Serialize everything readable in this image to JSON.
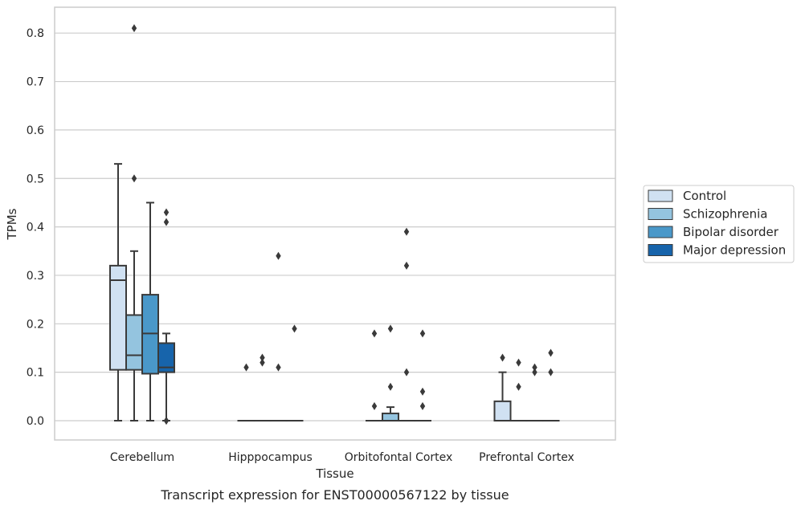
{
  "chart_data": {
    "type": "box",
    "title": "",
    "caption": "Transcript expression for ENST00000567122 by tissue",
    "xlabel": "Tissue",
    "ylabel": "TPMs",
    "ylim": [
      -0.04,
      0.85
    ],
    "yticks": [
      0.0,
      0.1,
      0.2,
      0.3,
      0.4,
      0.5,
      0.6,
      0.7,
      0.8
    ],
    "ytick_labels": [
      "0.0",
      "0.1",
      "0.2",
      "0.3",
      "0.4",
      "0.5",
      "0.6",
      "0.7",
      "0.8"
    ],
    "grid": "horizontal",
    "legend_position": "center-right, outside plot",
    "categories": [
      "Cerebellum",
      "Hipppocampus",
      "Orbitofontal Cortex",
      "Prefrontal Cortex"
    ],
    "series": [
      {
        "name": "Control",
        "color": "#d0e1f2",
        "boxes": [
          {
            "whislo": 0.0,
            "q1": 0.105,
            "med": 0.29,
            "q3": 0.32,
            "whishi": 0.53,
            "fliers": []
          },
          {
            "whislo": 0.0,
            "q1": 0.0,
            "med": 0.0,
            "q3": 0.0,
            "whishi": 0.0,
            "fliers": [
              0.11
            ]
          },
          {
            "whislo": 0.0,
            "q1": 0.0,
            "med": 0.0,
            "q3": 0.0,
            "whishi": 0.0,
            "fliers": [
              0.18,
              0.03
            ]
          },
          {
            "whislo": 0.0,
            "q1": 0.0,
            "med": 0.0,
            "q3": 0.04,
            "whishi": 0.1,
            "fliers": [
              0.13
            ]
          }
        ]
      },
      {
        "name": "Schizophrenia",
        "color": "#94c4df",
        "boxes": [
          {
            "whislo": 0.0,
            "q1": 0.105,
            "med": 0.135,
            "q3": 0.218,
            "whishi": 0.35,
            "fliers": [
              0.81,
              0.5
            ]
          },
          {
            "whislo": 0.0,
            "q1": 0.0,
            "med": 0.0,
            "q3": 0.0,
            "whishi": 0.0,
            "fliers": [
              0.13,
              0.12
            ]
          },
          {
            "whislo": 0.0,
            "q1": 0.0,
            "med": 0.0,
            "q3": 0.015,
            "whishi": 0.028,
            "fliers": [
              0.19,
              0.07
            ]
          },
          {
            "whislo": 0.0,
            "q1": 0.0,
            "med": 0.0,
            "q3": 0.0,
            "whishi": 0.0,
            "fliers": [
              0.12,
              0.07
            ]
          }
        ]
      },
      {
        "name": "Bipolar disorder",
        "color": "#4a98c9",
        "boxes": [
          {
            "whislo": 0.0,
            "q1": 0.097,
            "med": 0.18,
            "q3": 0.26,
            "whishi": 0.45,
            "fliers": []
          },
          {
            "whislo": 0.0,
            "q1": 0.0,
            "med": 0.0,
            "q3": 0.0,
            "whishi": 0.0,
            "fliers": [
              0.34,
              0.11
            ]
          },
          {
            "whislo": 0.0,
            "q1": 0.0,
            "med": 0.0,
            "q3": 0.0,
            "whishi": 0.0,
            "fliers": [
              0.39,
              0.32,
              0.1
            ]
          },
          {
            "whislo": 0.0,
            "q1": 0.0,
            "med": 0.0,
            "q3": 0.0,
            "whishi": 0.0,
            "fliers": [
              0.11,
              0.1
            ]
          }
        ]
      },
      {
        "name": "Major depression",
        "color": "#1764ab",
        "boxes": [
          {
            "whislo": 0.0,
            "q1": 0.1,
            "med": 0.11,
            "q3": 0.16,
            "whishi": 0.18,
            "fliers": [
              0.43,
              0.41,
              0.0,
              0.0
            ]
          },
          {
            "whislo": 0.0,
            "q1": 0.0,
            "med": 0.0,
            "q3": 0.0,
            "whishi": 0.0,
            "fliers": [
              0.19
            ]
          },
          {
            "whislo": 0.0,
            "q1": 0.0,
            "med": 0.0,
            "q3": 0.0,
            "whishi": 0.0,
            "fliers": [
              0.18,
              0.06,
              0.03
            ]
          },
          {
            "whislo": 0.0,
            "q1": 0.0,
            "med": 0.0,
            "q3": 0.0,
            "whishi": 0.0,
            "fliers": [
              0.14,
              0.1
            ]
          }
        ]
      }
    ]
  }
}
